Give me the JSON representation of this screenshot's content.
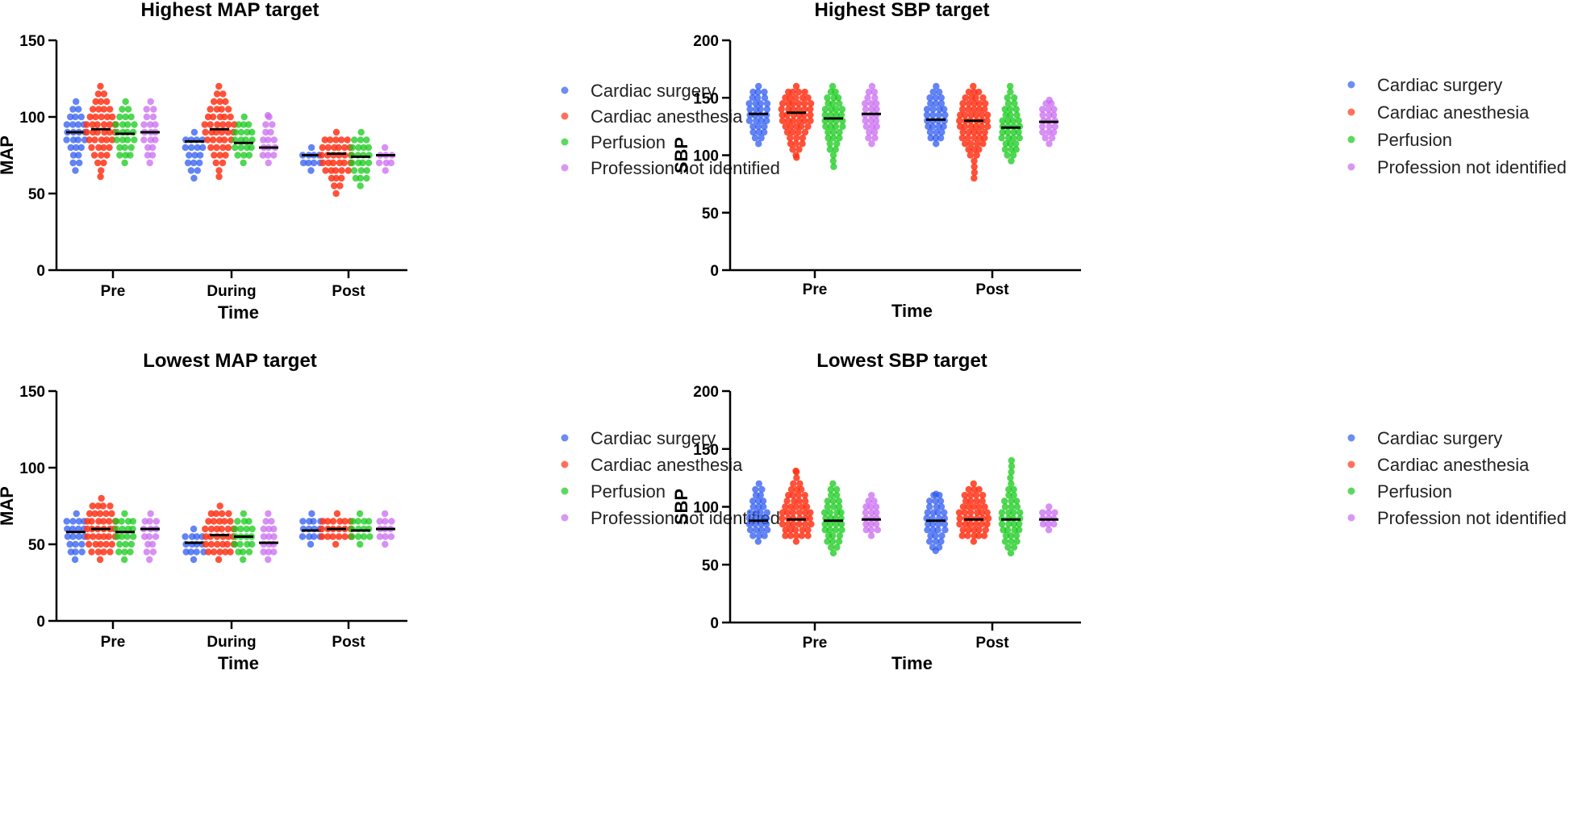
{
  "group_colors": [
    "#2f5bf0",
    "#ff3418",
    "#16c91a",
    "#c96bf0"
  ],
  "median_color": "#000000",
  "chart_data": [
    {
      "type": "scatter",
      "title": "Highest MAP target",
      "xlabel": "Time",
      "ylabel": "MAP",
      "ylim": [
        0,
        150
      ],
      "yticks": [
        "0",
        "50",
        "100",
        "150"
      ],
      "categories": [
        "Pre",
        "During",
        "Post"
      ],
      "legend": [
        "Cardiac surgery",
        "Cardiac anesthesia",
        "Perfusion",
        "Profession not identified"
      ],
      "legend_position": "right",
      "series": [
        {
          "name": "Cardiac surgery",
          "medians": [
            90,
            84,
            75
          ],
          "ranges": [
            [
              65,
              110
            ],
            [
              60,
              90
            ],
            [
              65,
              80
            ]
          ]
        },
        {
          "name": "Cardiac anesthesia",
          "medians": [
            92,
            92,
            76
          ],
          "ranges": [
            [
              61,
              120
            ],
            [
              61,
              120
            ],
            [
              50,
              90
            ]
          ]
        },
        {
          "name": "Perfusion",
          "medians": [
            89,
            83,
            74
          ],
          "ranges": [
            [
              70,
              110
            ],
            [
              70,
              100
            ],
            [
              55,
              90
            ]
          ]
        },
        {
          "name": "Profession not identified",
          "medians": [
            90,
            80,
            75
          ],
          "ranges": [
            [
              70,
              110
            ],
            [
              70,
              101
            ],
            [
              65,
              80
            ]
          ]
        }
      ]
    },
    {
      "type": "scatter",
      "title": "Highest SBP target",
      "xlabel": "Time",
      "ylabel": "SBP",
      "ylim": [
        0,
        200
      ],
      "yticks": [
        "0",
        "50",
        "100",
        "150",
        "200"
      ],
      "categories": [
        "Pre",
        "Post"
      ],
      "legend": [
        "Cardiac surgery",
        "Cardiac anesthesia",
        "Perfusion",
        "Profession not identified"
      ],
      "legend_position": "right",
      "series": [
        {
          "name": "Cardiac surgery",
          "medians": [
            136,
            131
          ],
          "ranges": [
            [
              110,
              160
            ],
            [
              110,
              160
            ]
          ]
        },
        {
          "name": "Cardiac anesthesia",
          "medians": [
            137,
            130
          ],
          "ranges": [
            [
              98,
              160
            ],
            [
              80,
              160
            ]
          ]
        },
        {
          "name": "Perfusion",
          "medians": [
            132,
            124
          ],
          "ranges": [
            [
              90,
              160
            ],
            [
              95,
              160
            ]
          ]
        },
        {
          "name": "Profession not identified",
          "medians": [
            136,
            129
          ],
          "ranges": [
            [
              110,
              160
            ],
            [
              110,
              148
            ]
          ]
        }
      ]
    },
    {
      "type": "scatter",
      "title": "Lowest MAP target",
      "xlabel": "Time",
      "ylabel": "MAP",
      "ylim": [
        0,
        150
      ],
      "yticks": [
        "0",
        "50",
        "100",
        "150"
      ],
      "categories": [
        "Pre",
        "During",
        "Post"
      ],
      "legend": [
        "Cardiac surgery",
        "Cardiac anesthesia",
        "Perfusion",
        "Profession not identified"
      ],
      "legend_position": "right",
      "series": [
        {
          "name": "Cardiac surgery",
          "medians": [
            58,
            51,
            59
          ],
          "ranges": [
            [
              40,
              70
            ],
            [
              40,
              60
            ],
            [
              50,
              70
            ]
          ]
        },
        {
          "name": "Cardiac anesthesia",
          "medians": [
            60,
            56,
            60
          ],
          "ranges": [
            [
              40,
              80
            ],
            [
              40,
              75
            ],
            [
              50,
              70
            ]
          ]
        },
        {
          "name": "Perfusion",
          "medians": [
            58,
            55,
            59
          ],
          "ranges": [
            [
              40,
              70
            ],
            [
              40,
              70
            ],
            [
              50,
              70
            ]
          ]
        },
        {
          "name": "Profession not identified",
          "medians": [
            60,
            51,
            60
          ],
          "ranges": [
            [
              40,
              70
            ],
            [
              40,
              70
            ],
            [
              50,
              70
            ]
          ]
        }
      ]
    },
    {
      "type": "scatter",
      "title": "Lowest SBP target",
      "xlabel": "Time",
      "ylabel": "SBP",
      "ylim": [
        0,
        200
      ],
      "yticks": [
        "0",
        "50",
        "100",
        "150",
        "200"
      ],
      "categories": [
        "Pre",
        "Post"
      ],
      "legend": [
        "Cardiac surgery",
        "Cardiac anesthesia",
        "Perfusion",
        "Profession not identified"
      ],
      "legend_position": "right",
      "series": [
        {
          "name": "Cardiac surgery",
          "medians": [
            88,
            88
          ],
          "ranges": [
            [
              70,
              120
            ],
            [
              62,
              111
            ]
          ]
        },
        {
          "name": "Cardiac anesthesia",
          "medians": [
            89,
            89
          ],
          "ranges": [
            [
              70,
              131
            ],
            [
              70,
              120
            ]
          ]
        },
        {
          "name": "Perfusion",
          "medians": [
            88,
            89
          ],
          "ranges": [
            [
              60,
              120
            ],
            [
              60,
              140
            ]
          ]
        },
        {
          "name": "Profession not identified",
          "medians": [
            89,
            89
          ],
          "ranges": [
            [
              75,
              110
            ],
            [
              80,
              100
            ]
          ]
        }
      ]
    }
  ]
}
